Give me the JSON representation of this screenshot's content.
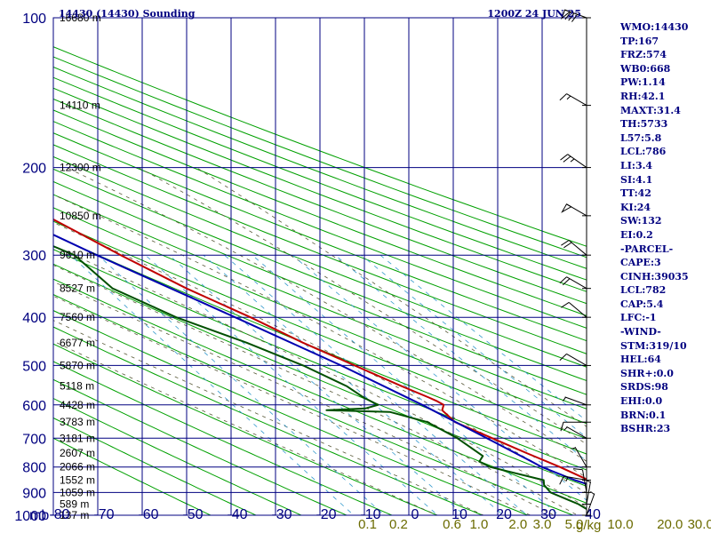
{
  "header": {
    "title": "14430 (14430) Sounding",
    "valid_time": "1200Z 24 JUN 25"
  },
  "indices": [
    "WMO:14430",
    "TP:167",
    "FRZ:574",
    "WB0:668",
    "PW:1.14",
    "RH:42.1",
    "MAXT:31.4",
    "TH:5733",
    "L57:5.8",
    "LCL:786",
    "LI:3.4",
    "SI:4.1",
    "TT:42",
    "KI:24",
    "SW:132",
    "EI:0.2",
    "-PARCEL-",
    "CAPE:3",
    "CINH:39035",
    "LCL:782",
    "CAP:5.4",
    "LFC:-1",
    "-WIND-",
    "STM:319/10",
    "HEL:64",
    "SHR+:0.0",
    "SRDS:98",
    "EHI:0.0",
    "BRN:0.1",
    "BSHR:23"
  ],
  "colors": {
    "axes": "#000080",
    "temperature": "#c00000",
    "dewpoint": "#005000",
    "parcel": "#0000b0",
    "dry_adiabat": "#00a000",
    "moist_adiabat": "#5a5a3a",
    "mixing_ratio": "#3399cc"
  },
  "chart_data": {
    "type": "line",
    "title": "14430 (14430) Sounding",
    "pressure_unit": "mb",
    "mixing_ratio_unit": "g/kg",
    "pressure_levels": [
      100,
      200,
      300,
      400,
      500,
      600,
      700,
      800,
      900,
      1000
    ],
    "pressure_ticks": [
      "100",
      "200",
      "300",
      "400",
      "500",
      "600",
      "700",
      "800",
      "900",
      "1000"
    ],
    "temperature_ticks": [
      -80,
      -70,
      -60,
      -50,
      -40,
      -30,
      -20,
      -10,
      0,
      10,
      20,
      30,
      40
    ],
    "temperature_tick_labels": [
      "-80",
      "-70",
      "-60",
      "-50",
      "-40",
      "-30",
      "-20",
      "-10",
      "0",
      "10",
      "20",
      "30",
      "40"
    ],
    "height_labels": [
      {
        "p": 100,
        "text": "16680 m"
      },
      {
        "p": 150,
        "text": "14110 m"
      },
      {
        "p": 200,
        "text": "12300 m"
      },
      {
        "p": 250,
        "text": "10850 m"
      },
      {
        "p": 300,
        "text": "9610 m"
      },
      {
        "p": 350,
        "text": "8527 m"
      },
      {
        "p": 400,
        "text": "7560 m"
      },
      {
        "p": 450,
        "text": "6677 m"
      },
      {
        "p": 500,
        "text": "5870 m"
      },
      {
        "p": 550,
        "text": "5118 m"
      },
      {
        "p": 600,
        "text": "4428 m"
      },
      {
        "p": 650,
        "text": "3783 m"
      },
      {
        "p": 700,
        "text": "3181 m"
      },
      {
        "p": 750,
        "text": "2607 m"
      },
      {
        "p": 800,
        "text": "2066 m"
      },
      {
        "p": 850,
        "text": "1552 m"
      },
      {
        "p": 900,
        "text": "1059 m"
      },
      {
        "p": 950,
        "text": "589 m"
      },
      {
        "p": 1000,
        "text": "137 m"
      }
    ],
    "mixing_ratio_labels": [
      "0.1",
      "0.2",
      "0.6",
      "1.0",
      "2.0",
      "3.0",
      "5.0",
      "10.0",
      "20.0",
      "30.0",
      "40"
    ],
    "mixing_ratio_values": [
      0.1,
      0.2,
      0.6,
      1.0,
      2.0,
      3.0,
      5.0,
      10.0,
      20.0,
      30.0,
      40
    ],
    "series": [
      {
        "key": "temperature",
        "points": [
          [
            100,
            -59.6
          ],
          [
            130,
            -57.9
          ],
          [
            150,
            -58.4
          ],
          [
            180,
            -54.3
          ],
          [
            190,
            -55.3
          ],
          [
            200,
            -53.7
          ],
          [
            250,
            -49.9
          ],
          [
            300,
            -41.3
          ],
          [
            350,
            -33.4
          ],
          [
            400,
            -25.0
          ],
          [
            450,
            -18.5
          ],
          [
            500,
            -11.6
          ],
          [
            550,
            -5.4
          ],
          [
            580,
            -1.6
          ],
          [
            590,
            -0.5
          ],
          [
            600,
            0.2
          ],
          [
            615,
            -1.2
          ],
          [
            650,
            -0.7
          ],
          [
            700,
            4.3
          ],
          [
            750,
            8.9
          ],
          [
            800,
            13.5
          ],
          [
            850,
            17.2
          ],
          [
            900,
            21.1
          ],
          [
            950,
            25.3
          ],
          [
            1000,
            29.1
          ]
        ]
      },
      {
        "key": "dewpoint",
        "points": [
          [
            140,
            -78.0
          ],
          [
            150,
            -74.9
          ],
          [
            180,
            -71.2
          ],
          [
            200,
            -71.0
          ],
          [
            240,
            -61.4
          ],
          [
            250,
            -56.7
          ],
          [
            260,
            -61.6
          ],
          [
            300,
            -51.5
          ],
          [
            350,
            -49.7
          ],
          [
            400,
            -41.4
          ],
          [
            450,
            -30.9
          ],
          [
            500,
            -23.0
          ],
          [
            550,
            -17.5
          ],
          [
            580,
            -16.0
          ],
          [
            600,
            -14.3
          ],
          [
            610,
            -17.8
          ],
          [
            615,
            -26.7
          ],
          [
            620,
            -13.1
          ],
          [
            650,
            -6.8
          ],
          [
            700,
            -3.4
          ],
          [
            760,
            -1.3
          ],
          [
            780,
            -3.2
          ],
          [
            800,
            -1.9
          ],
          [
            850,
            7.3
          ],
          [
            870,
            6.4
          ],
          [
            900,
            6.4
          ],
          [
            950,
            10.2
          ],
          [
            970,
            11.0
          ],
          [
            1000,
            12.4
          ]
        ]
      },
      {
        "key": "parcel",
        "points": [
          [
            1000,
            29.1
          ],
          [
            950,
            25.4
          ],
          [
            900,
            20.1
          ],
          [
            850,
            14.2
          ],
          [
            800,
            9.5
          ],
          [
            782,
            8.5
          ],
          [
            700,
            3.1
          ],
          [
            600,
            -4.5
          ],
          [
            500,
            -14.6
          ],
          [
            400,
            -28.4
          ],
          [
            300,
            -46.6
          ],
          [
            250,
            -57.3
          ],
          [
            200,
            -68.5
          ],
          [
            160,
            -78.3
          ]
        ]
      }
    ],
    "wind_barbs": [
      {
        "p": 100,
        "dir": 290,
        "kt": 80
      },
      {
        "p": 150,
        "dir": 300,
        "kt": 15
      },
      {
        "p": 200,
        "dir": 305,
        "kt": 25
      },
      {
        "p": 250,
        "dir": 300,
        "kt": 50
      },
      {
        "p": 300,
        "dir": 310,
        "kt": 20
      },
      {
        "p": 350,
        "dir": 300,
        "kt": 20
      },
      {
        "p": 400,
        "dir": 310,
        "kt": 10
      },
      {
        "p": 500,
        "dir": 300,
        "kt": 10
      },
      {
        "p": 600,
        "dir": 290,
        "kt": 5
      },
      {
        "p": 650,
        "dir": 270,
        "kt": 10
      },
      {
        "p": 700,
        "dir": 300,
        "kt": 5
      },
      {
        "p": 800,
        "dir": 330,
        "kt": 5
      },
      {
        "p": 850,
        "dir": 280,
        "kt": 15
      },
      {
        "p": 900,
        "dir": 350,
        "kt": 10
      },
      {
        "p": 950,
        "dir": 10,
        "kt": 5
      },
      {
        "p": 1000,
        "dir": 20,
        "kt": 5
      }
    ]
  }
}
